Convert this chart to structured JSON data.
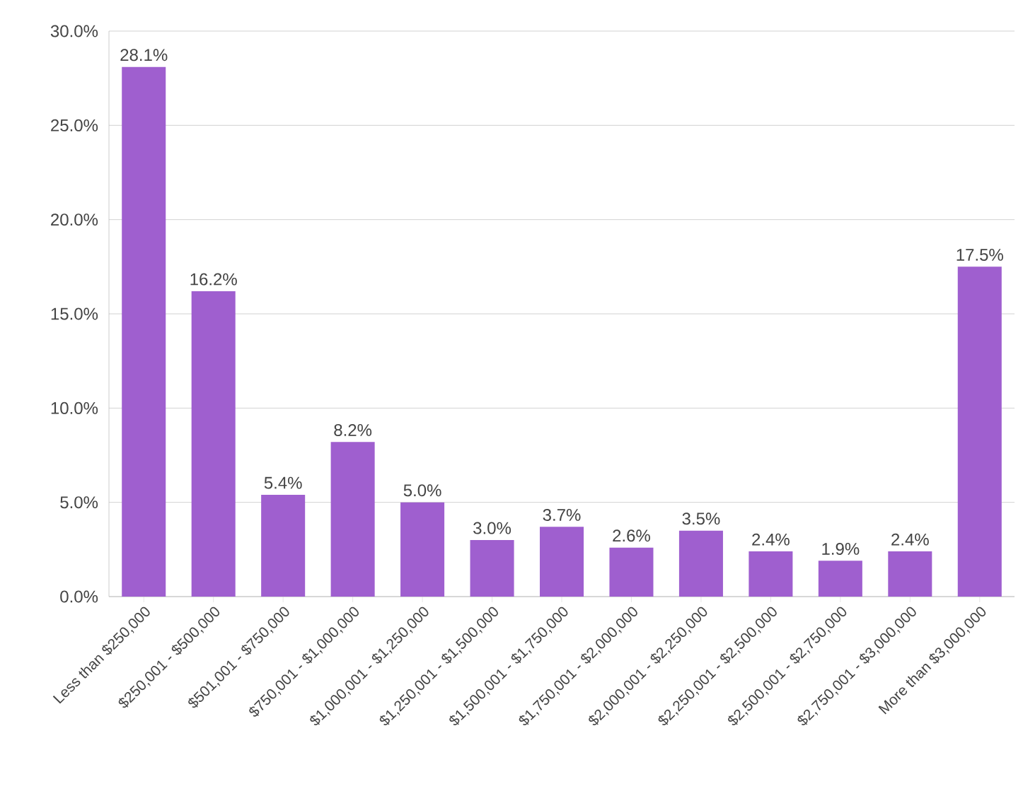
{
  "chart_data": {
    "type": "bar",
    "categories": [
      "Less than $250,000",
      "$250,001 - $500,000",
      "$501,001 - $750,000",
      "$750,001 - $1,000,000",
      "$1,000,001 - $1,250,000",
      "$1,250,001 - $1,500,000",
      "$1,500,001 - $1,750,000",
      "$1,750,001 - $2,000,000",
      "$2,000,001 - $2,250,000",
      "$2,250,001 - $2,500,000",
      "$2,500,001 - $2,750,000",
      "$2,750,001 - $3,000,000",
      "More than $3,000,000"
    ],
    "values": [
      28.1,
      16.2,
      5.4,
      8.2,
      5.0,
      3.0,
      3.7,
      2.6,
      3.5,
      2.4,
      1.9,
      2.4,
      17.5
    ],
    "value_labels": [
      "28.1%",
      "16.2%",
      "5.4%",
      "8.2%",
      "5.0%",
      "3.0%",
      "3.7%",
      "2.6%",
      "3.5%",
      "2.4%",
      "1.9%",
      "2.4%",
      "17.5%"
    ],
    "color": "#9f5fcf",
    "ylim": [
      0,
      30
    ],
    "yticks": [
      {
        "value": 0,
        "label": "0.0%"
      },
      {
        "value": 5,
        "label": "5.0%"
      },
      {
        "value": 10,
        "label": "10.0%"
      },
      {
        "value": 15,
        "label": "15.0%"
      },
      {
        "value": 20,
        "label": "20.0%"
      },
      {
        "value": 25,
        "label": "25.0%"
      },
      {
        "value": 30,
        "label": "30.0%"
      }
    ],
    "grid": "y"
  }
}
